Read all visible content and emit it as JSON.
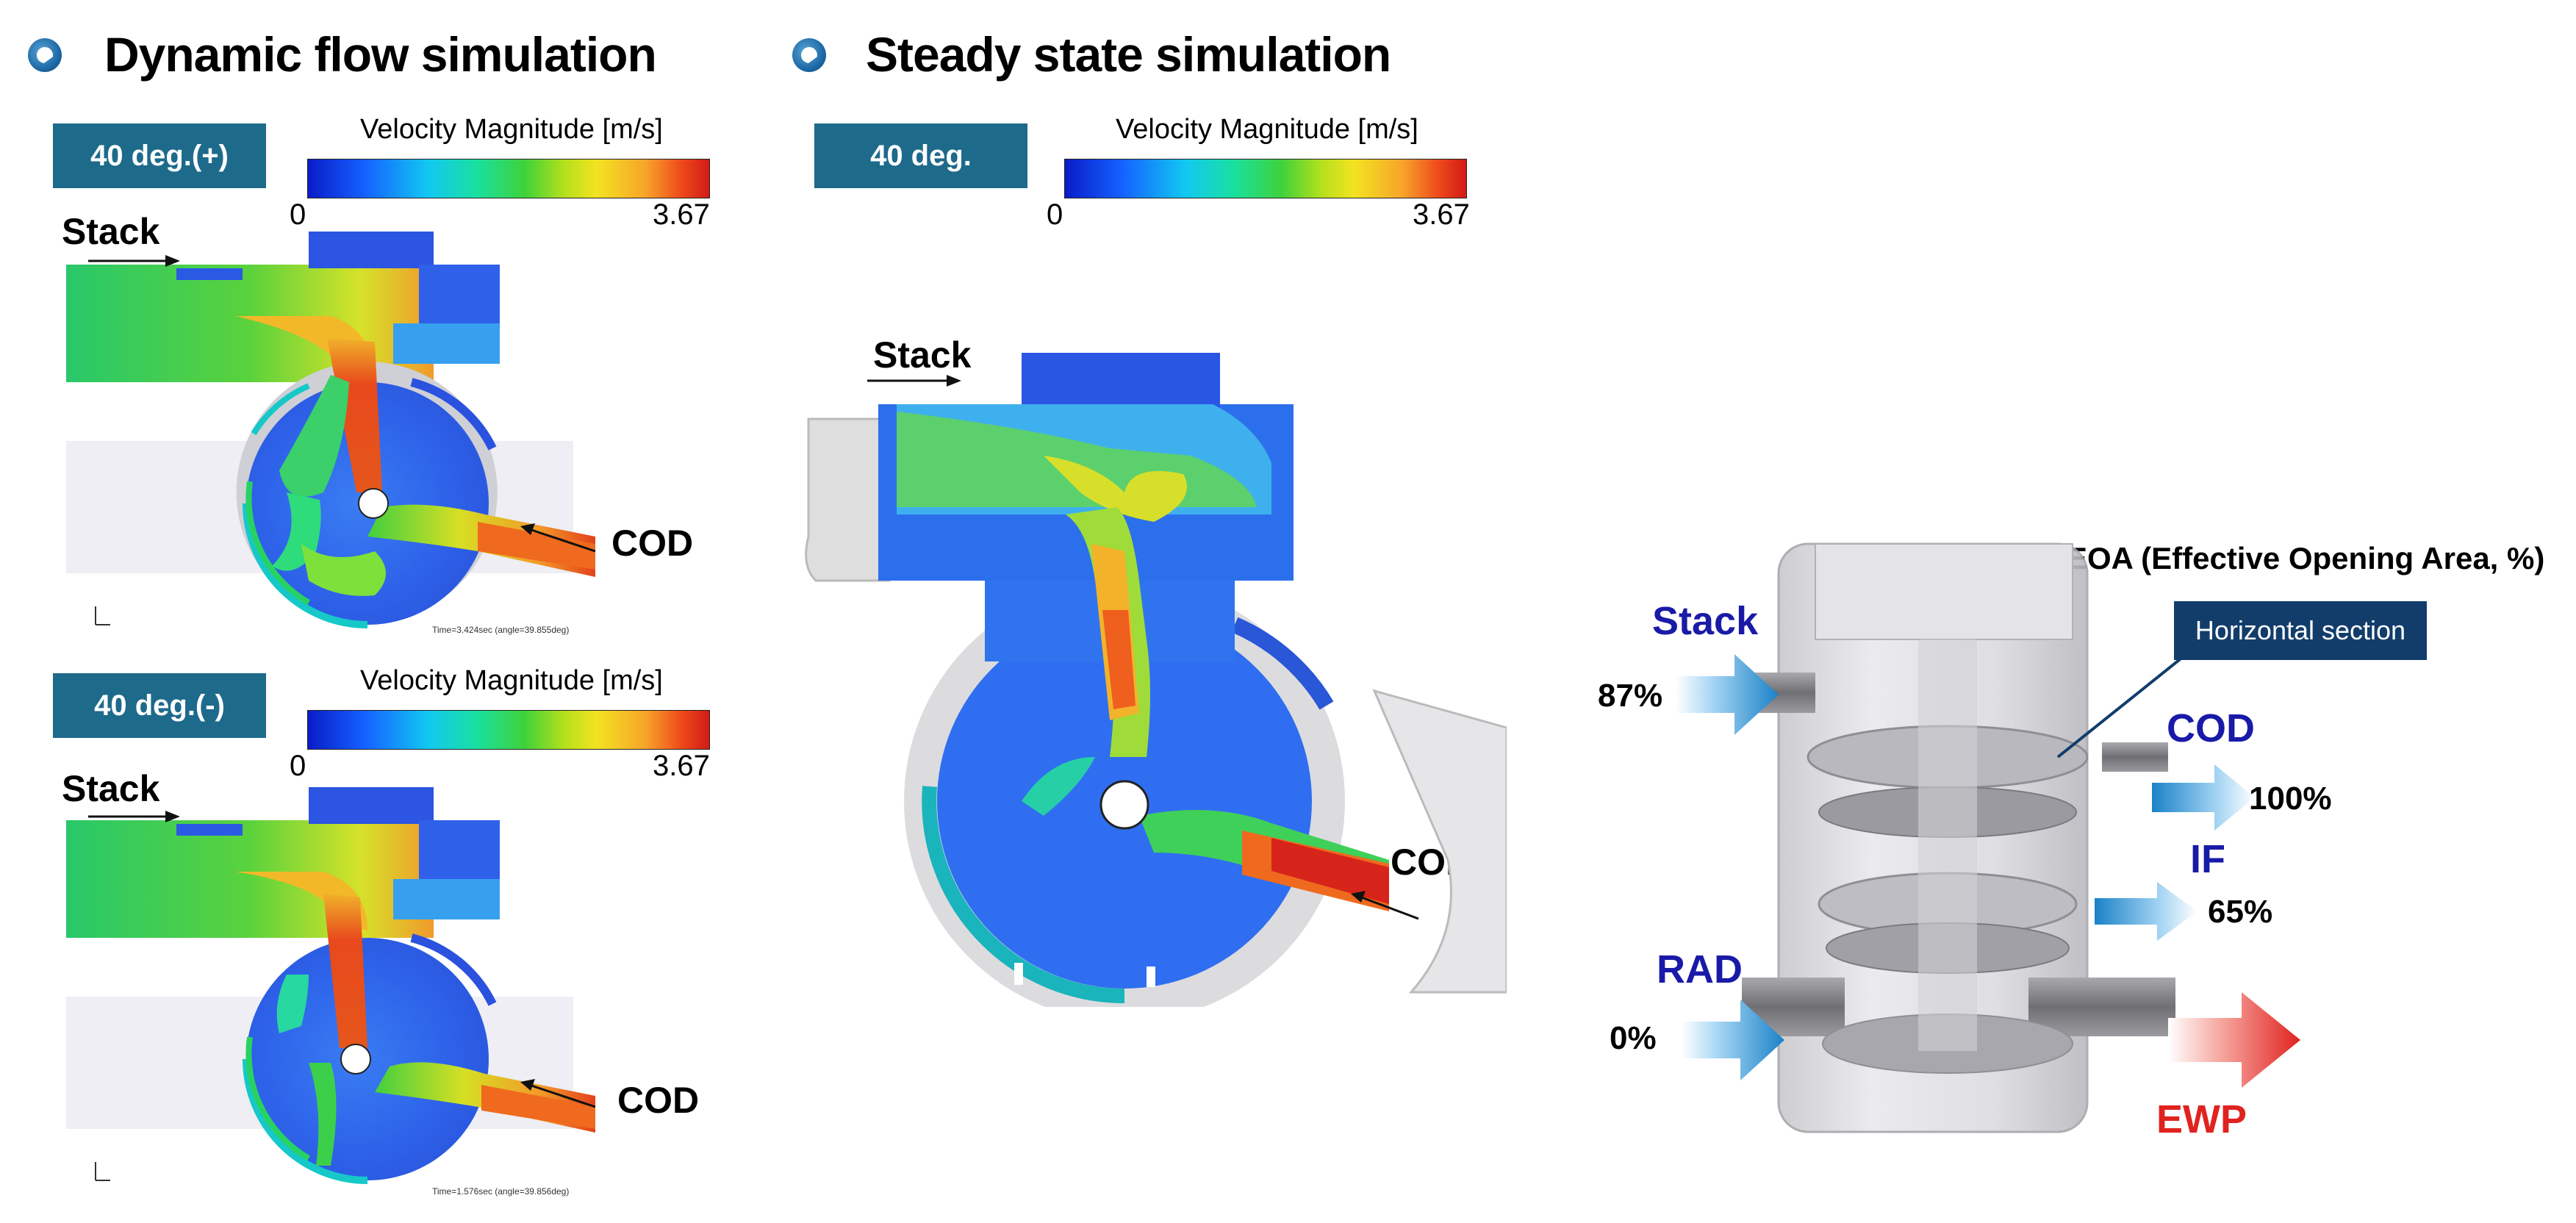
{
  "sections": {
    "dynamic_title": "Dynamic flow simulation",
    "steady_title": "Steady state simulation"
  },
  "panels": {
    "dyn_pos": {
      "badge": "40 deg.(+)",
      "scale_title": "Velocity Magnitude [m/s]",
      "scale_min": "0",
      "scale_max": "3.67",
      "inlet_label": "Stack",
      "outlet_label": "COD",
      "time_text": "Time=3.424sec (angle=39.855deg)"
    },
    "dyn_neg": {
      "badge": "40 deg.(-)",
      "scale_title": "Velocity Magnitude [m/s]",
      "scale_min": "0",
      "scale_max": "3.67",
      "inlet_label": "Stack",
      "outlet_label": "COD",
      "time_text": "Time=1.576sec (angle=39.856deg)"
    },
    "steady": {
      "badge": "40 deg.",
      "scale_title": "Velocity Magnitude [m/s]",
      "scale_min": "0",
      "scale_max": "3.67",
      "inlet_label": "Stack",
      "outlet_label": "COD"
    }
  },
  "valve": {
    "eoa_title": "EOA (Effective Opening Area, %)",
    "horizontal_section": "Horizontal section",
    "ports": {
      "stack": {
        "name": "Stack",
        "pct": "87%"
      },
      "cod": {
        "name": "COD",
        "pct": "100%"
      },
      "if": {
        "name": "IF",
        "pct": "65%"
      },
      "rad": {
        "name": "RAD",
        "pct": "0%"
      },
      "ewp": {
        "name": "EWP"
      }
    }
  },
  "colors": {
    "badge_bg": "#1d6a8b",
    "port_label": "#1a1aa8",
    "outlet_label": "#e0231f",
    "callout_bg": "#123d6b",
    "inlet_arrow": "#1d86c8",
    "outlet_arrow": "#e0231f"
  },
  "icons": [
    "section-bullet-icon",
    "flow-arrow-icon",
    "inlet-arrow-icon",
    "outlet-arrow-icon"
  ]
}
